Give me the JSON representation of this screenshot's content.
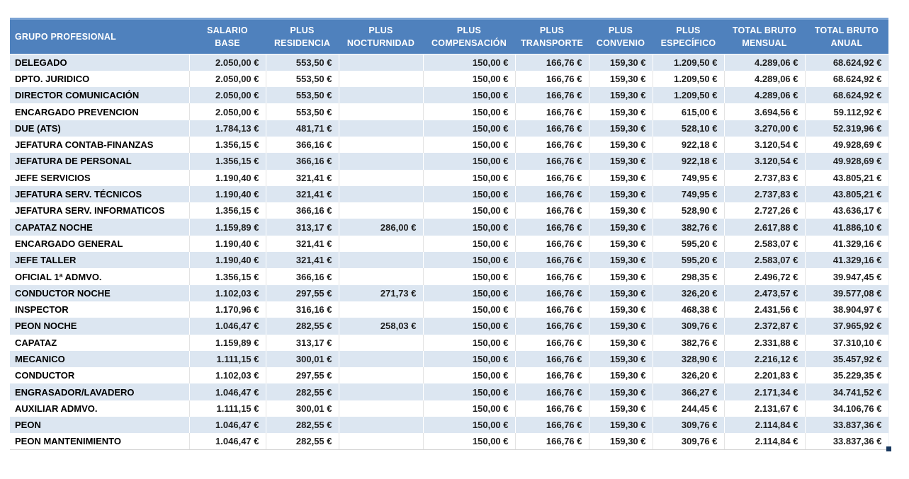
{
  "colors": {
    "header_bg": "#4f81bd",
    "header_top_edge": "#7ba3d4",
    "header_text": "#ffffff",
    "stripe_bg": "#dce6f1",
    "body_text": "#1f1f1f",
    "fill_handle": "#17375e"
  },
  "header": {
    "columns": [
      {
        "key": "grupo-profesional",
        "label": "GRUPO PROFESIONAL"
      },
      {
        "key": "salario-base",
        "label": "SALARIO BASE"
      },
      {
        "key": "plus-residencia",
        "label": "PLUS\nRESIDENCIA"
      },
      {
        "key": "plus-nocturnidad",
        "label": "PLUS\nNOCTURNIDAD"
      },
      {
        "key": "plus-compensacion",
        "label": "PLUS\nCOMPENSACIÓN"
      },
      {
        "key": "plus-transporte",
        "label": "PLUS\nTRANSPORTE"
      },
      {
        "key": "plus-convenio",
        "label": "PLUS\nCONVENIO"
      },
      {
        "key": "plus-especifico",
        "label": "PLUS\nESPECÍFICO"
      },
      {
        "key": "total-bruto-mensual",
        "label": "TOTAL BRUTO\nMENSUAL"
      },
      {
        "key": "total-bruto-anual",
        "label": "TOTAL BRUTO\nANUAL"
      }
    ]
  },
  "rows": [
    [
      "DELEGADO",
      "2.050,00 €",
      "553,50 €",
      "",
      "150,00 €",
      "166,76 €",
      "159,30 €",
      "1.209,50 €",
      "4.289,06 €",
      "68.624,92 €"
    ],
    [
      "DPTO. JURIDICO",
      "2.050,00 €",
      "553,50 €",
      "",
      "150,00 €",
      "166,76 €",
      "159,30 €",
      "1.209,50 €",
      "4.289,06 €",
      "68.624,92 €"
    ],
    [
      "DIRECTOR COMUNICACIÓN",
      "2.050,00 €",
      "553,50 €",
      "",
      "150,00 €",
      "166,76 €",
      "159,30 €",
      "1.209,50 €",
      "4.289,06 €",
      "68.624,92 €"
    ],
    [
      "ENCARGADO PREVENCION",
      "2.050,00 €",
      "553,50 €",
      "",
      "150,00 €",
      "166,76 €",
      "159,30 €",
      "615,00 €",
      "3.694,56 €",
      "59.112,92 €"
    ],
    [
      "DUE (ATS)",
      "1.784,13 €",
      "481,71 €",
      "",
      "150,00 €",
      "166,76 €",
      "159,30 €",
      "528,10 €",
      "3.270,00 €",
      "52.319,96 €"
    ],
    [
      "JEFATURA CONTAB-FINANZAS",
      "1.356,15 €",
      "366,16 €",
      "",
      "150,00 €",
      "166,76 €",
      "159,30 €",
      "922,18 €",
      "3.120,54 €",
      "49.928,69 €"
    ],
    [
      "JEFATURA DE PERSONAL",
      "1.356,15 €",
      "366,16 €",
      "",
      "150,00 €",
      "166,76 €",
      "159,30 €",
      "922,18 €",
      "3.120,54 €",
      "49.928,69 €"
    ],
    [
      "JEFE SERVICIOS",
      "1.190,40 €",
      "321,41 €",
      "",
      "150,00 €",
      "166,76 €",
      "159,30 €",
      "749,95 €",
      "2.737,83 €",
      "43.805,21 €"
    ],
    [
      "JEFATURA SERV. TÉCNICOS",
      "1.190,40 €",
      "321,41 €",
      "",
      "150,00 €",
      "166,76 €",
      "159,30 €",
      "749,95 €",
      "2.737,83 €",
      "43.805,21 €"
    ],
    [
      "JEFATURA SERV. INFORMATICOS",
      "1.356,15 €",
      "366,16 €",
      "",
      "150,00 €",
      "166,76 €",
      "159,30 €",
      "528,90 €",
      "2.727,26 €",
      "43.636,17 €"
    ],
    [
      "CAPATAZ NOCHE",
      "1.159,89 €",
      "313,17 €",
      "286,00 €",
      "150,00 €",
      "166,76 €",
      "159,30 €",
      "382,76 €",
      "2.617,88 €",
      "41.886,10 €"
    ],
    [
      "ENCARGADO GENERAL",
      "1.190,40 €",
      "321,41 €",
      "",
      "150,00 €",
      "166,76 €",
      "159,30 €",
      "595,20 €",
      "2.583,07 €",
      "41.329,16 €"
    ],
    [
      "JEFE TALLER",
      "1.190,40 €",
      "321,41 €",
      "",
      "150,00 €",
      "166,76 €",
      "159,30 €",
      "595,20 €",
      "2.583,07 €",
      "41.329,16 €"
    ],
    [
      "OFICIAL 1ª ADMVO.",
      "1.356,15 €",
      "366,16 €",
      "",
      "150,00 €",
      "166,76 €",
      "159,30 €",
      "298,35 €",
      "2.496,72 €",
      "39.947,45 €"
    ],
    [
      "CONDUCTOR NOCHE",
      "1.102,03 €",
      "297,55 €",
      "271,73 €",
      "150,00 €",
      "166,76 €",
      "159,30 €",
      "326,20 €",
      "2.473,57 €",
      "39.577,08 €"
    ],
    [
      "INSPECTOR",
      "1.170,96 €",
      "316,16 €",
      "",
      "150,00 €",
      "166,76 €",
      "159,30 €",
      "468,38 €",
      "2.431,56 €",
      "38.904,97 €"
    ],
    [
      "PEON NOCHE",
      "1.046,47 €",
      "282,55 €",
      "258,03 €",
      "150,00 €",
      "166,76 €",
      "159,30 €",
      "309,76 €",
      "2.372,87 €",
      "37.965,92 €"
    ],
    [
      "CAPATAZ",
      "1.159,89 €",
      "313,17 €",
      "",
      "150,00 €",
      "166,76 €",
      "159,30 €",
      "382,76 €",
      "2.331,88 €",
      "37.310,10 €"
    ],
    [
      "MECANICO",
      "1.111,15 €",
      "300,01 €",
      "",
      "150,00 €",
      "166,76 €",
      "159,30 €",
      "328,90 €",
      "2.216,12 €",
      "35.457,92 €"
    ],
    [
      "CONDUCTOR",
      "1.102,03 €",
      "297,55 €",
      "",
      "150,00 €",
      "166,76 €",
      "159,30 €",
      "326,20 €",
      "2.201,83 €",
      "35.229,35 €"
    ],
    [
      "ENGRASADOR/LAVADERO",
      "1.046,47 €",
      "282,55 €",
      "",
      "150,00 €",
      "166,76 €",
      "159,30 €",
      "366,27 €",
      "2.171,34 €",
      "34.741,52 €"
    ],
    [
      "AUXILIAR ADMVO.",
      "1.111,15 €",
      "300,01 €",
      "",
      "150,00 €",
      "166,76 €",
      "159,30 €",
      "244,45 €",
      "2.131,67 €",
      "34.106,76 €"
    ],
    [
      "PEON",
      "1.046,47 €",
      "282,55 €",
      "",
      "150,00 €",
      "166,76 €",
      "159,30 €",
      "309,76 €",
      "2.114,84 €",
      "33.837,36 €"
    ],
    [
      "PEON MANTENIMIENTO",
      "1.046,47 €",
      "282,55 €",
      "",
      "150,00 €",
      "166,76 €",
      "159,30 €",
      "309,76 €",
      "2.114,84 €",
      "33.837,36 €"
    ]
  ]
}
